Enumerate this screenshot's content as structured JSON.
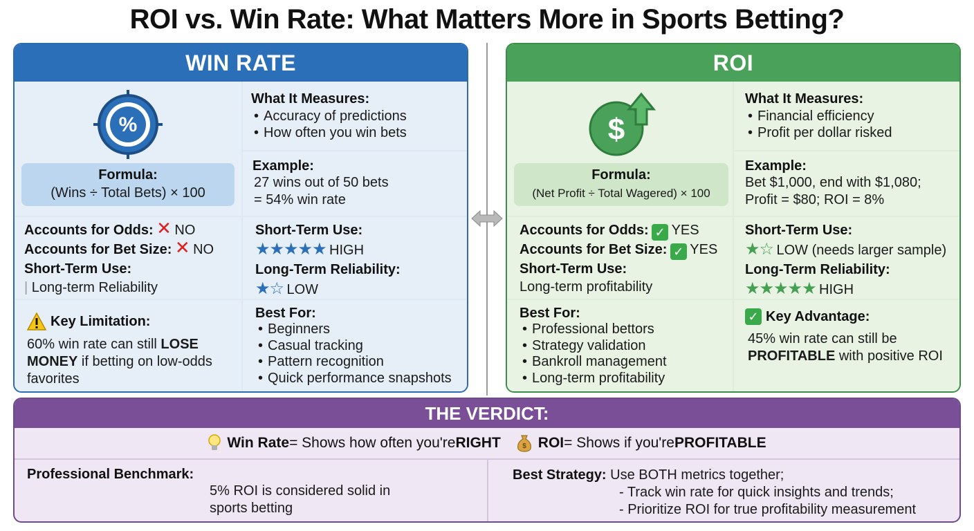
{
  "title": "ROI vs. Win Rate: What Matters More in Sports Betting?",
  "colors": {
    "win_rate": "#2a6fb8",
    "roi": "#4aa25a",
    "verdict": "#7a4f97",
    "negative": "#e02020"
  },
  "win_rate": {
    "header": "WIN RATE",
    "icon": "percent-target-icon",
    "icon_text": "%",
    "formula_label": "Formula:",
    "formula": "(Wins ÷ Total Bets) × 100",
    "measures_title": "What It Measures:",
    "measures": [
      "Accuracy of predictions",
      "How often you win bets"
    ],
    "example_title": "Example:",
    "example_lines": [
      "27 wins out of 50 bets",
      "= 54% win rate"
    ],
    "odds_label": "Accounts for Odds:",
    "odds_value": "NO",
    "betsize_label": "Accounts for Bet Size:",
    "betsize_value": "NO",
    "shortterm_label": "Short-Term Use:",
    "longterm_text": "Long-term Reliability",
    "short_title": "Short-Term Use:",
    "short_stars": "★★★★★",
    "short_value": "HIGH",
    "short_rating": 5,
    "long_title": "Long-Term Reliability:",
    "long_stars": "★☆",
    "long_value": "LOW",
    "long_rating": 1,
    "limit_title": "Key Limitation:",
    "limit_pre": "60% win rate can still ",
    "limit_bold": "LOSE MONEY",
    "limit_post": " if betting on low-odds favorites",
    "best_title": "Best For:",
    "best_items": [
      "Beginners",
      "Casual tracking",
      "Pattern recognition",
      "Quick performance snapshots"
    ]
  },
  "roi": {
    "header": "ROI",
    "icon": "dollar-up-arrow-icon",
    "icon_text": "$",
    "formula_label": "Formula:",
    "formula": "(Net Profit ÷ Total Wagered) × 100",
    "measures_title": "What It Measures:",
    "measures": [
      "Financial efficiency",
      "Profit per dollar risked"
    ],
    "example_title": "Example:",
    "example_lines": [
      "Bet $1,000, end with $1,080;",
      "Profit = $80; ROI = 8%"
    ],
    "odds_label": "Accounts for Odds:",
    "odds_value": "YES",
    "betsize_label": "Accounts for Bet Size:",
    "betsize_value": "YES",
    "shortterm_label": "Short-Term Use:",
    "longterm_text": "Long-term profitability",
    "short_title": "Short-Term Use:",
    "short_stars": "★☆",
    "short_value": "LOW (needs larger sample)",
    "short_rating": 1,
    "long_title": "Long-Term Reliability:",
    "long_stars": "★★★★★",
    "long_value": "HIGH",
    "long_rating": 5,
    "best_title": "Best For:",
    "best_items": [
      "Professional bettors",
      "Strategy validation",
      "Bankroll management",
      "Long-term profitability"
    ],
    "adv_title": "Key Advantage:",
    "adv_pre": "45% win rate can still be",
    "adv_bold": "PROFITABLE",
    "adv_post": " with positive ROI"
  },
  "verdict": {
    "header": "THE VERDICT:",
    "wr_bold": "Win Rate",
    "wr_text": " = Shows how often you're ",
    "wr_end": "RIGHT",
    "roi_bold": "ROI",
    "roi_text": " = Shows if you're ",
    "roi_end": "PROFITABLE",
    "bench_title": "Professional Benchmark:",
    "bench_lines": [
      "5% ROI is considered solid in",
      "sports betting"
    ],
    "strategy_title": "Best Strategy:",
    "strategy_text": " Use BOTH metrics together;",
    "strategy_lines": [
      "- Track win rate for quick insights and trends;",
      "- Prioritize ROI for true profitability measurement"
    ]
  }
}
